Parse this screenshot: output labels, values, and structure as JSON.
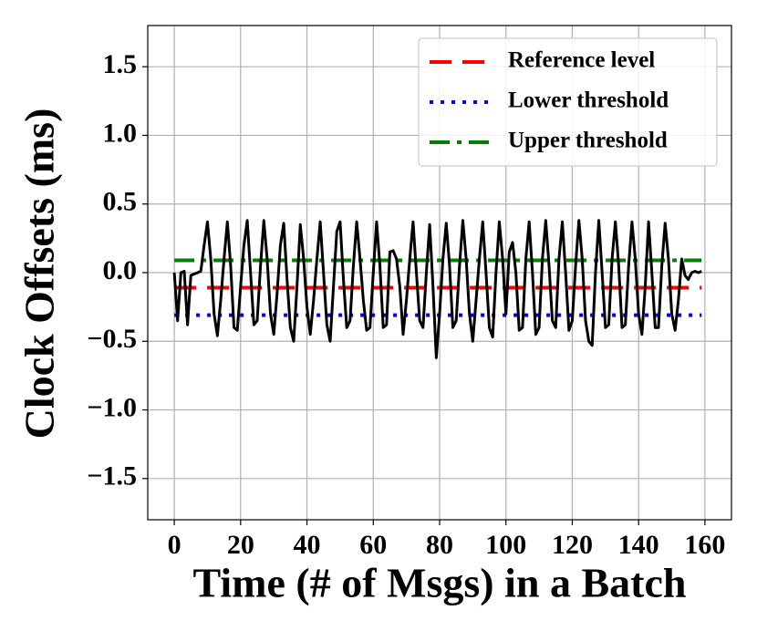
{
  "chart_data": {
    "type": "line",
    "xlabel": "Time (# of Msgs) in a Batch",
    "ylabel": "Clock Offsets (ms)",
    "xlim": [
      -8,
      168
    ],
    "ylim": [
      -1.8,
      1.8
    ],
    "xticks": [
      0,
      20,
      40,
      60,
      80,
      100,
      120,
      140,
      160
    ],
    "yticks": [
      {
        "value": -1.5,
        "label": "−1.5"
      },
      {
        "value": -1.0,
        "label": "−1.0"
      },
      {
        "value": -0.5,
        "label": "−0.5"
      },
      {
        "value": 0.0,
        "label": "0.0"
      },
      0.5,
      {
        "value": 1.0,
        "label": "1.0"
      },
      1.5
    ],
    "grid": true,
    "legend": "upper right",
    "x": [
      0,
      1,
      2,
      3,
      4,
      5,
      6,
      7,
      8,
      9,
      10,
      11,
      12,
      13,
      14,
      15,
      16,
      17,
      18,
      19,
      20,
      21,
      22,
      23,
      24,
      25,
      26,
      27,
      28,
      29,
      30,
      31,
      32,
      33,
      34,
      35,
      36,
      37,
      38,
      39,
      40,
      41,
      42,
      43,
      44,
      45,
      46,
      47,
      48,
      49,
      50,
      51,
      52,
      53,
      54,
      55,
      56,
      57,
      58,
      59,
      60,
      61,
      62,
      63,
      64,
      65,
      66,
      67,
      68,
      69,
      70,
      71,
      72,
      73,
      74,
      75,
      76,
      77,
      78,
      79,
      80,
      81,
      82,
      83,
      84,
      85,
      86,
      87,
      88,
      89,
      90,
      91,
      92,
      93,
      94,
      95,
      96,
      97,
      98,
      99,
      100,
      101,
      102,
      103,
      104,
      105,
      106,
      107,
      108,
      109,
      110,
      111,
      112,
      113,
      114,
      115,
      116,
      117,
      118,
      119,
      120,
      121,
      122,
      123,
      124,
      125,
      126,
      127,
      128,
      129,
      130,
      131,
      132,
      133,
      134,
      135,
      136,
      137,
      138,
      139,
      140,
      141,
      142,
      143,
      144,
      145,
      146,
      147,
      148,
      149,
      150,
      151,
      152,
      153,
      154,
      155,
      156,
      157,
      158,
      159
    ],
    "series": [
      {
        "color": "#000000",
        "values": [
          0.0,
          -0.35,
          0.0,
          0.01,
          -0.38,
          -0.02,
          -0.01,
          0.0,
          0.01,
          0.2,
          0.37,
          0.1,
          -0.3,
          -0.46,
          -0.2,
          0.1,
          0.37,
          0.05,
          -0.4,
          -0.42,
          -0.1,
          0.2,
          0.38,
          0.0,
          -0.38,
          -0.35,
          0.05,
          0.38,
          0.1,
          -0.3,
          -0.45,
          -0.15,
          0.2,
          0.36,
          -0.05,
          -0.4,
          -0.5,
          -0.1,
          0.35,
          0.1,
          -0.25,
          -0.45,
          -0.2,
          0.1,
          0.37,
          0.0,
          -0.38,
          -0.5,
          -0.1,
          0.3,
          0.37,
          -0.05,
          -0.4,
          -0.35,
          0.05,
          0.37,
          0.1,
          -0.2,
          -0.42,
          -0.4,
          0.0,
          0.37,
          0.05,
          -0.4,
          -0.38,
          0.15,
          0.16,
          0.1,
          -0.1,
          -0.45,
          -0.2,
          0.1,
          0.37,
          0.0,
          -0.35,
          -0.4,
          0.0,
          0.35,
          -0.1,
          -0.62,
          -0.3,
          0.1,
          0.36,
          0.05,
          -0.4,
          -0.35,
          0.05,
          0.38,
          0.1,
          -0.3,
          -0.5,
          -0.2,
          0.1,
          0.37,
          0.0,
          -0.4,
          -0.47,
          0.0,
          0.37,
          0.1,
          -0.3,
          0.15,
          0.22,
          0.0,
          -0.42,
          -0.4,
          0.1,
          0.37,
          0.0,
          -0.45,
          -0.4,
          0.1,
          0.38,
          0.05,
          -0.35,
          -0.4,
          0.1,
          0.37,
          0.0,
          -0.42,
          -0.35,
          0.05,
          0.38,
          0.1,
          -0.35,
          -0.5,
          -0.53,
          0.0,
          0.38,
          0.0,
          -0.4,
          -0.38,
          0.1,
          0.37,
          0.05,
          -0.4,
          -0.38,
          0.05,
          0.37,
          0.1,
          -0.3,
          -0.45,
          -0.1,
          0.37,
          0.0,
          -0.4,
          -0.4,
          0.05,
          0.36,
          0.1,
          -0.3,
          -0.42,
          -0.2,
          0.1,
          -0.02,
          -0.05,
          0.0,
          0.01,
          0.0,
          0.01
        ]
      }
    ],
    "hlines": [
      {
        "name": "Reference level",
        "color": "#ff0000",
        "style": "dashed",
        "value": -0.11
      },
      {
        "name": "Lower threshold",
        "color": "#0000ff",
        "style": "dotted",
        "value": -0.31
      },
      {
        "name": "Upper threshold",
        "color": "#008000",
        "style": "dashdot",
        "value": 0.09
      }
    ]
  }
}
